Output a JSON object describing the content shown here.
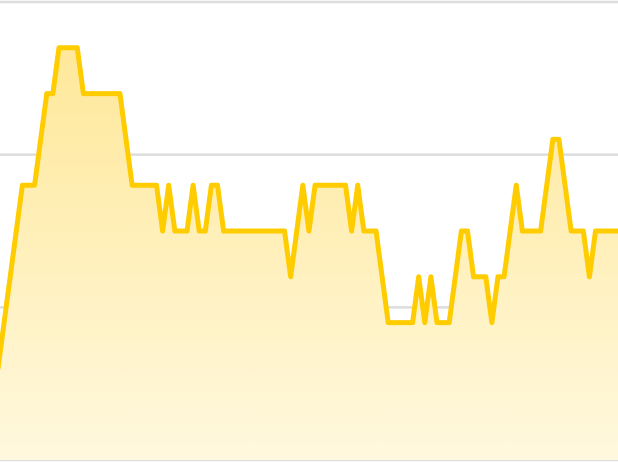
{
  "chart_data": {
    "type": "area",
    "ylim": [
      0,
      15
    ],
    "grid": true,
    "gridlines": [
      0,
      5,
      10,
      15
    ],
    "colors": {
      "line": "#FFCC00",
      "fill_top": "#FFE89A",
      "fill_bottom": "#FFF8DE",
      "grid": "#DDDDDD",
      "baseline": "#DDDDDD"
    },
    "x": [
      0,
      1,
      2,
      3,
      4,
      5,
      6,
      7,
      8,
      9,
      10,
      11,
      12,
      13,
      14,
      15,
      16,
      17,
      18,
      19,
      20,
      21,
      22,
      23,
      24,
      25,
      26,
      27,
      28,
      29,
      30,
      31,
      32,
      33,
      34,
      35,
      36,
      37,
      38,
      39,
      40,
      41,
      42,
      43,
      44,
      45,
      46,
      47,
      48,
      49,
      50,
      51,
      52,
      53,
      54,
      55,
      56,
      57,
      58,
      59,
      60,
      61,
      62,
      63,
      64,
      65,
      66,
      67,
      68,
      69,
      70,
      71,
      72,
      73,
      74,
      75,
      76,
      77,
      78,
      79,
      80,
      81,
      82,
      83,
      84,
      85,
      86,
      87,
      88,
      89,
      90,
      91,
      92,
      93,
      94,
      95,
      96,
      97,
      98,
      99,
      100,
      101,
      102,
      103
    ],
    "values": [
      3,
      4.5,
      6,
      7.5,
      9,
      9,
      9,
      10.5,
      12,
      12,
      13.5,
      13.5,
      13.5,
      13.5,
      12,
      12,
      12,
      12,
      12,
      12,
      12,
      10.5,
      9,
      9,
      9,
      9,
      9,
      7.5,
      9,
      7.5,
      7.5,
      7.5,
      9,
      7.5,
      7.5,
      9,
      9,
      7.5,
      7.5,
      7.5,
      7.5,
      7.5,
      7.5,
      7.5,
      7.5,
      7.5,
      7.5,
      7.5,
      6,
      7.5,
      9,
      7.5,
      9,
      9,
      9,
      9,
      9,
      9,
      7.5,
      9,
      7.5,
      7.5,
      7.5,
      6,
      4.5,
      4.5,
      4.5,
      4.5,
      4.5,
      6,
      4.5,
      6,
      4.5,
      4.5,
      4.5,
      6,
      7.5,
      7.5,
      6,
      6,
      6,
      4.5,
      6,
      6,
      7.5,
      9,
      7.5,
      7.5,
      7.5,
      7.5,
      9,
      10.5,
      10.5,
      9,
      7.5,
      7.5,
      7.5,
      6,
      7.5,
      7.5,
      7.5,
      7.5,
      7.5,
      7.5
    ]
  }
}
